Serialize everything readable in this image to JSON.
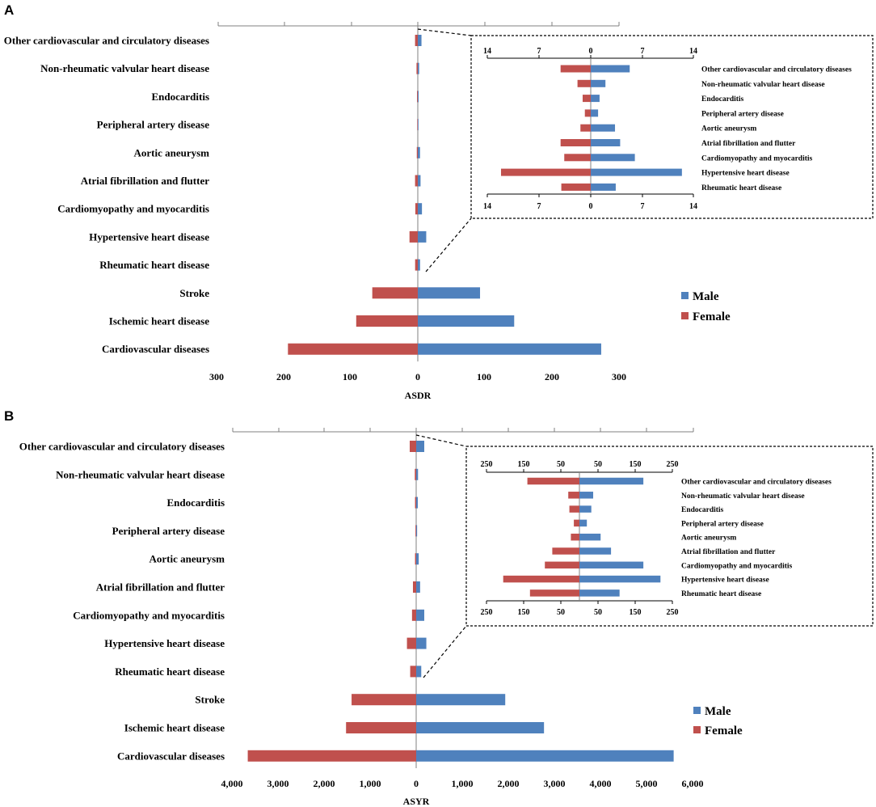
{
  "colors": {
    "male": "#4f81bd",
    "female": "#c0504d",
    "axis": "#808080"
  },
  "legend": {
    "male": "Male",
    "female": "Female"
  },
  "chart_data": [
    {
      "panel": "A",
      "type": "bar",
      "orientation": "horizontal-diverging",
      "xlabel": "ASDR",
      "xlim": [
        -300,
        300
      ],
      "tick_labels": [
        "300",
        "200",
        "100",
        "0",
        "100",
        "200",
        "300"
      ],
      "categories": [
        "Other cardiovascular and circulatory diseases",
        "Non-rheumatic valvular heart disease",
        "Endocarditis",
        "Peripheral artery disease",
        "Aortic aneurysm",
        "Atrial fibrillation and flutter",
        "Cardiomyopathy and myocarditis",
        "Hypertensive heart disease",
        "Rheumatic heart disease",
        "Stroke",
        "Ischemic heart disease",
        "Cardiovascular diseases"
      ],
      "series": [
        {
          "name": "Male",
          "values": [
            5.5,
            2.0,
            1.2,
            1.0,
            3.3,
            4.1,
            6.2,
            12.6,
            3.4,
            93,
            144,
            274
          ]
        },
        {
          "name": "Female",
          "values": [
            4.1,
            1.9,
            1.1,
            0.8,
            1.5,
            4.1,
            3.7,
            12.4,
            4.0,
            68,
            92,
            194
          ]
        }
      ],
      "inset": {
        "xlim": [
          -14,
          14
        ],
        "tick_labels": [
          "14",
          "7",
          "0",
          "7",
          "14"
        ],
        "categories": [
          "Other cardiovascular and circulatory diseases",
          "Non-rheumatic valvular heart disease",
          "Endocarditis",
          "Peripheral artery disease",
          "Aortic aneurysm",
          "Atrial fibrillation and flutter",
          "Cardiomyopathy and myocarditis",
          "Hypertensive heart disease",
          "Rheumatic heart disease"
        ],
        "series": [
          {
            "name": "Male",
            "values": [
              5.3,
              2.0,
              1.2,
              1.0,
              3.3,
              4.0,
              6.0,
              12.4,
              3.4
            ]
          },
          {
            "name": "Female",
            "values": [
              4.1,
              1.8,
              1.1,
              0.8,
              1.4,
              4.1,
              3.6,
              12.2,
              4.0
            ]
          }
        ]
      }
    },
    {
      "panel": "B",
      "type": "bar",
      "orientation": "horizontal-diverging",
      "xlabel": "ASYR",
      "xlim": [
        -4000,
        6000
      ],
      "tick_labels": [
        "4,000",
        "3,000",
        "2,000",
        "1,000",
        "0",
        "1,000",
        "2,000",
        "3,000",
        "4,000",
        "5,000",
        "6,000"
      ],
      "categories": [
        "Other cardiovascular and circulatory diseases",
        "Non-rheumatic valvular heart disease",
        "Endocarditis",
        "Peripheral artery disease",
        "Aortic aneurysm",
        "Atrial fibrillation and flutter",
        "Cardiomyopathy and myocarditis",
        "Hypertensive heart disease",
        "Rheumatic heart disease",
        "Stroke",
        "Ischemic heart disease",
        "Cardiovascular diseases"
      ],
      "series": [
        {
          "name": "Male",
          "values": [
            175,
            40,
            35,
            20,
            55,
            85,
            175,
            220,
            110,
            1930,
            2770,
            5580
          ]
        },
        {
          "name": "Female",
          "values": [
            140,
            30,
            25,
            15,
            25,
            70,
            90,
            200,
            130,
            1400,
            1520,
            3650
          ]
        }
      ],
      "inset": {
        "xlim": [
          -250,
          250
        ],
        "tick_labels": [
          "250",
          "150",
          "50",
          "50",
          "150",
          "250"
        ],
        "categories": [
          "Other cardiovascular and circulatory diseases",
          "Non-rheumatic valvular heart disease",
          "Endocarditis",
          "Peripheral artery disease",
          "Aortic aneurysm",
          "Atrial fibrillation and flutter",
          "Cardiomyopathy and myocarditis",
          "Hypertensive heart disease",
          "Rheumatic heart disease"
        ],
        "series": [
          {
            "name": "Male",
            "values": [
              172,
              37,
              32,
              20,
              57,
              85,
              172,
              218,
              108
            ]
          },
          {
            "name": "Female",
            "values": [
              140,
              30,
              27,
              15,
              23,
              73,
              93,
              205,
              133
            ]
          }
        ]
      }
    }
  ]
}
